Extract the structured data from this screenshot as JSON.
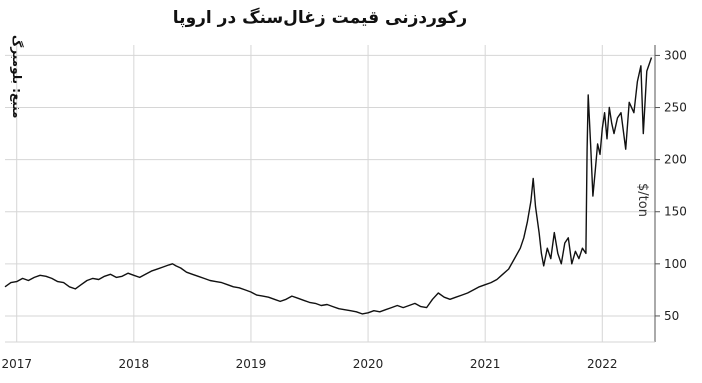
{
  "chart_data": {
    "type": "line",
    "title": "رکوردزنی قیمت زغال‌سنگ در اروپا",
    "source": "منبع: بلومبرگ",
    "ylabel": "$/ton",
    "xlabel": "",
    "ylim": [
      25,
      310
    ],
    "xlim": [
      2016.9,
      2022.45
    ],
    "x_ticks": [
      "2017",
      "2018",
      "2019",
      "2020",
      "2021",
      "2022"
    ],
    "x_tick_values": [
      2017,
      2018,
      2019,
      2020,
      2021,
      2022
    ],
    "y_ticks": [
      50,
      100,
      150,
      200,
      250,
      300
    ],
    "y_axis_position": "right",
    "grid": true,
    "series": [
      {
        "values": [
          [
            2016.9,
            78
          ],
          [
            2016.95,
            82
          ],
          [
            2017.0,
            83
          ],
          [
            2017.05,
            86
          ],
          [
            2017.1,
            84
          ],
          [
            2017.15,
            87
          ],
          [
            2017.2,
            89
          ],
          [
            2017.25,
            88
          ],
          [
            2017.3,
            86
          ],
          [
            2017.35,
            83
          ],
          [
            2017.4,
            82
          ],
          [
            2017.45,
            78
          ],
          [
            2017.5,
            76
          ],
          [
            2017.55,
            80
          ],
          [
            2017.6,
            84
          ],
          [
            2017.65,
            86
          ],
          [
            2017.7,
            85
          ],
          [
            2017.75,
            88
          ],
          [
            2017.8,
            90
          ],
          [
            2017.85,
            87
          ],
          [
            2017.9,
            88
          ],
          [
            2017.95,
            91
          ],
          [
            2018.0,
            89
          ],
          [
            2018.05,
            87
          ],
          [
            2018.1,
            90
          ],
          [
            2018.15,
            93
          ],
          [
            2018.2,
            95
          ],
          [
            2018.25,
            97
          ],
          [
            2018.3,
            99
          ],
          [
            2018.33,
            100
          ],
          [
            2018.36,
            98
          ],
          [
            2018.4,
            96
          ],
          [
            2018.45,
            92
          ],
          [
            2018.5,
            90
          ],
          [
            2018.55,
            88
          ],
          [
            2018.6,
            86
          ],
          [
            2018.65,
            84
          ],
          [
            2018.7,
            83
          ],
          [
            2018.75,
            82
          ],
          [
            2018.8,
            80
          ],
          [
            2018.85,
            78
          ],
          [
            2018.9,
            77
          ],
          [
            2018.95,
            75
          ],
          [
            2019.0,
            73
          ],
          [
            2019.05,
            70
          ],
          [
            2019.1,
            69
          ],
          [
            2019.15,
            68
          ],
          [
            2019.2,
            66
          ],
          [
            2019.25,
            64
          ],
          [
            2019.3,
            66
          ],
          [
            2019.35,
            69
          ],
          [
            2019.4,
            67
          ],
          [
            2019.45,
            65
          ],
          [
            2019.5,
            63
          ],
          [
            2019.55,
            62
          ],
          [
            2019.6,
            60
          ],
          [
            2019.65,
            61
          ],
          [
            2019.7,
            59
          ],
          [
            2019.75,
            57
          ],
          [
            2019.8,
            56
          ],
          [
            2019.85,
            55
          ],
          [
            2019.9,
            54
          ],
          [
            2019.95,
            52
          ],
          [
            2020.0,
            53
          ],
          [
            2020.05,
            55
          ],
          [
            2020.1,
            54
          ],
          [
            2020.15,
            56
          ],
          [
            2020.2,
            58
          ],
          [
            2020.25,
            60
          ],
          [
            2020.3,
            58
          ],
          [
            2020.35,
            60
          ],
          [
            2020.4,
            62
          ],
          [
            2020.45,
            59
          ],
          [
            2020.5,
            58
          ],
          [
            2020.55,
            66
          ],
          [
            2020.6,
            72
          ],
          [
            2020.65,
            68
          ],
          [
            2020.7,
            66
          ],
          [
            2020.75,
            68
          ],
          [
            2020.8,
            70
          ],
          [
            2020.85,
            72
          ],
          [
            2020.9,
            75
          ],
          [
            2020.95,
            78
          ],
          [
            2021.0,
            80
          ],
          [
            2021.05,
            82
          ],
          [
            2021.1,
            85
          ],
          [
            2021.15,
            90
          ],
          [
            2021.2,
            95
          ],
          [
            2021.25,
            105
          ],
          [
            2021.3,
            115
          ],
          [
            2021.33,
            125
          ],
          [
            2021.36,
            140
          ],
          [
            2021.39,
            160
          ],
          [
            2021.41,
            182
          ],
          [
            2021.43,
            155
          ],
          [
            2021.46,
            130
          ],
          [
            2021.48,
            110
          ],
          [
            2021.5,
            98
          ],
          [
            2021.53,
            115
          ],
          [
            2021.56,
            105
          ],
          [
            2021.59,
            130
          ],
          [
            2021.62,
            110
          ],
          [
            2021.65,
            100
          ],
          [
            2021.68,
            120
          ],
          [
            2021.71,
            125
          ],
          [
            2021.74,
            100
          ],
          [
            2021.77,
            112
          ],
          [
            2021.8,
            105
          ],
          [
            2021.83,
            115
          ],
          [
            2021.86,
            110
          ],
          [
            2021.87,
            210
          ],
          [
            2021.88,
            262
          ],
          [
            2021.9,
            215
          ],
          [
            2021.92,
            165
          ],
          [
            2021.94,
            190
          ],
          [
            2021.96,
            215
          ],
          [
            2021.98,
            205
          ],
          [
            2022.0,
            230
          ],
          [
            2022.02,
            245
          ],
          [
            2022.04,
            220
          ],
          [
            2022.06,
            250
          ],
          [
            2022.08,
            235
          ],
          [
            2022.1,
            225
          ],
          [
            2022.13,
            240
          ],
          [
            2022.16,
            245
          ],
          [
            2022.2,
            210
          ],
          [
            2022.23,
            255
          ],
          [
            2022.27,
            245
          ],
          [
            2022.3,
            275
          ],
          [
            2022.33,
            290
          ],
          [
            2022.35,
            225
          ],
          [
            2022.38,
            285
          ],
          [
            2022.42,
            298
          ]
        ]
      }
    ],
    "colors": {
      "line": "#111111",
      "grid": "#d6d6d6",
      "axis": "#555555",
      "tick_text": "#222222"
    }
  }
}
